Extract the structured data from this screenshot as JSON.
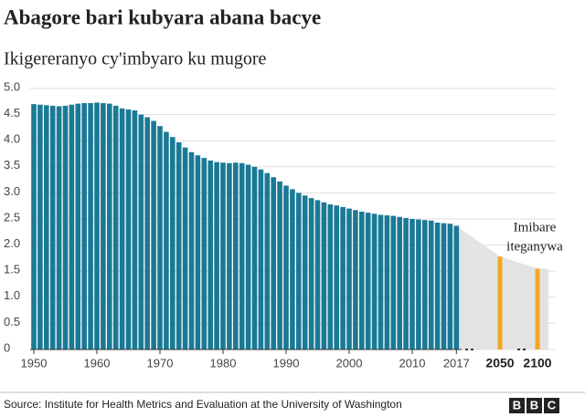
{
  "chart_data": {
    "type": "bar",
    "title": "Abagore bari kubyara abana bacye",
    "subtitle": "Ikigereranyo cy'imbyaro ku mugore",
    "source": "Source: Institute for Health Metrics and Evaluation at the University of Washington",
    "logo": [
      "B",
      "B",
      "C"
    ],
    "annotation": [
      "Imibare",
      "iteganywa"
    ],
    "color": "#1a7a96",
    "x": [
      1950,
      1951,
      1952,
      1953,
      1954,
      1955,
      1956,
      1957,
      1958,
      1959,
      1960,
      1961,
      1962,
      1963,
      1964,
      1965,
      1966,
      1967,
      1968,
      1969,
      1970,
      1971,
      1972,
      1973,
      1974,
      1975,
      1976,
      1977,
      1978,
      1979,
      1980,
      1981,
      1982,
      1983,
      1984,
      1985,
      1986,
      1987,
      1988,
      1989,
      1990,
      1991,
      1992,
      1993,
      1994,
      1995,
      1996,
      1997,
      1998,
      1999,
      2000,
      2001,
      2002,
      2003,
      2004,
      2005,
      2006,
      2007,
      2008,
      2009,
      2010,
      2011,
      2012,
      2013,
      2014,
      2015,
      2016,
      2017
    ],
    "values": [
      4.7,
      4.69,
      4.68,
      4.67,
      4.66,
      4.67,
      4.69,
      4.71,
      4.72,
      4.72,
      4.73,
      4.72,
      4.71,
      4.67,
      4.62,
      4.6,
      4.58,
      4.5,
      4.45,
      4.38,
      4.28,
      4.17,
      4.07,
      3.97,
      3.87,
      3.78,
      3.72,
      3.67,
      3.62,
      3.59,
      3.58,
      3.57,
      3.58,
      3.57,
      3.54,
      3.5,
      3.45,
      3.38,
      3.3,
      3.22,
      3.14,
      3.07,
      3.0,
      2.95,
      2.9,
      2.86,
      2.82,
      2.78,
      2.76,
      2.73,
      2.7,
      2.67,
      2.64,
      2.62,
      2.6,
      2.58,
      2.57,
      2.56,
      2.54,
      2.52,
      2.5,
      2.49,
      2.48,
      2.47,
      2.43,
      2.42,
      2.41,
      2.37
    ],
    "projection": {
      "x": [
        2050,
        2100
      ],
      "values": [
        1.78,
        1.55
      ],
      "color": "#f5a623"
    },
    "xticks": [
      1950,
      1960,
      1970,
      1980,
      1990,
      2000,
      2010,
      2017
    ],
    "ylim": [
      0,
      5
    ],
    "yticks": [
      0,
      0.5,
      {
        "value": 1,
        "label": "1.0"
      },
      1.5,
      {
        "value": 2,
        "label": "2.0"
      },
      2.5,
      {
        "value": 3,
        "label": "3.0"
      },
      3.5,
      {
        "value": 4,
        "label": "4.0"
      },
      4.5,
      {
        "value": 5,
        "label": "5.0"
      }
    ],
    "grid": true
  }
}
